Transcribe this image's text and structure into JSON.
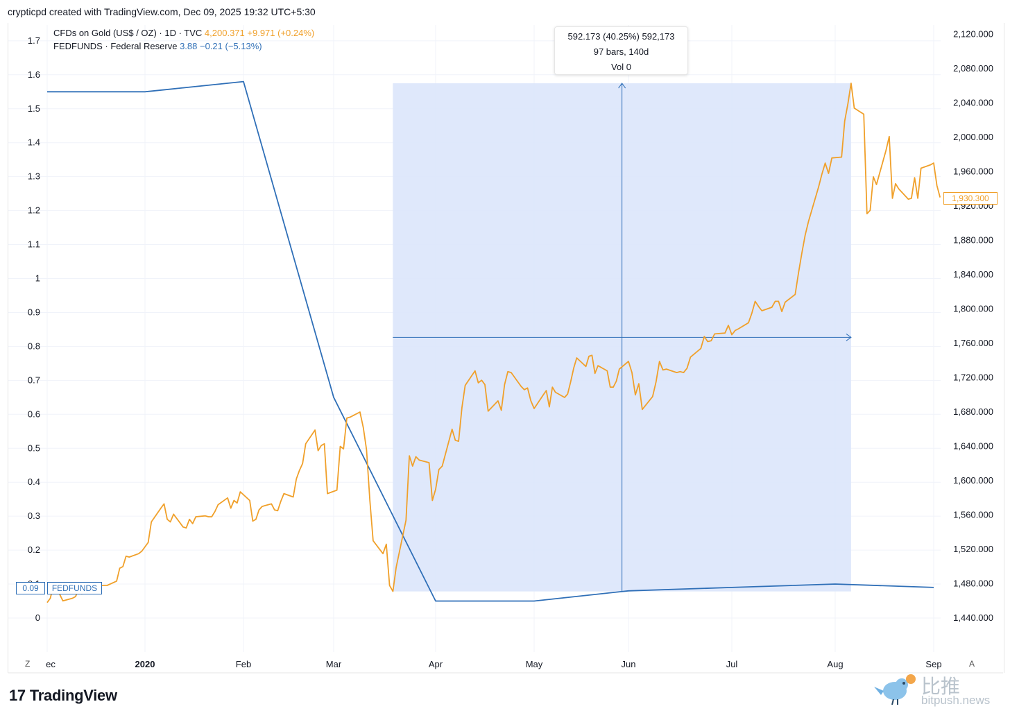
{
  "header": {
    "text": "crypticpd created with TradingView.com, Dec 09, 2025 19:32 UTC+5:30"
  },
  "legend": {
    "gold_name": "CFDs on Gold (US$ / OZ) · 1D · TVC",
    "gold_price": "4,200.371",
    "gold_change": "+9.971 (+0.24%)",
    "ff_name": "FEDFUNDS · Federal Reserve",
    "ff_value": "3.88",
    "ff_change": "−0.21 (−5.13%)"
  },
  "tooltip": {
    "line1": "592.173 (40.25%) 592,173",
    "line2": "97 bars, 140d",
    "line3": "Vol 0"
  },
  "badges": {
    "gold_last": "1,930.300",
    "ff_value": "0.09",
    "ff_name": "FEDFUNDS"
  },
  "controls": {
    "left": "Z",
    "right": "A"
  },
  "footer": {
    "logo_mark": "17",
    "logo_text": "TradingView"
  },
  "watermark": {
    "cn": "比推",
    "en": "bitpush.news"
  },
  "colors": {
    "gold": "#f0a02a",
    "fedfunds": "#2f6fb7",
    "range_fill": "#dce5fb",
    "grid": "#f0f3fa"
  },
  "chart_data": {
    "type": "line",
    "x_tick_labels": [
      "ec",
      "2020",
      "Feb",
      "Mar",
      "Apr",
      "May",
      "Jun",
      "Jul",
      "Aug",
      "Sep"
    ],
    "left_axis": {
      "ticks": [
        "0",
        "0.1",
        "0.2",
        "0.3",
        "0.4",
        "0.5",
        "0.6",
        "0.7",
        "0.8",
        "0.9",
        "1",
        "1.1",
        "1.2",
        "1.3",
        "1.4",
        "1.5",
        "1.6",
        "1.7"
      ],
      "ylim": [
        0,
        1.7
      ]
    },
    "right_axis": {
      "ticks": [
        "1,440.000",
        "1,480.000",
        "1,520.000",
        "1,560.000",
        "1,600.000",
        "1,640.000",
        "1,680.000",
        "1,720.000",
        "1,760.000",
        "1,800.000",
        "1,840.000",
        "1,880.000",
        "1,920.000",
        "1,960.000",
        "2,000.000",
        "2,040.000",
        "2,080.000",
        "2,120.000"
      ],
      "ylim": [
        1440,
        2120
      ]
    },
    "range_measure": {
      "x_start": "2020-03-19",
      "x_end": "2020-08-06",
      "y_low": 1471,
      "y_high": 2063
    },
    "series": [
      {
        "name": "FEDFUNDS",
        "axis": "left",
        "points": [
          [
            "2019-12-01",
            1.55
          ],
          [
            "2020-01-01",
            1.55
          ],
          [
            "2020-02-01",
            1.58
          ],
          [
            "2020-03-01",
            0.65
          ],
          [
            "2020-04-01",
            0.05
          ],
          [
            "2020-05-01",
            0.05
          ],
          [
            "2020-06-01",
            0.08
          ],
          [
            "2020-07-01",
            0.09
          ],
          [
            "2020-08-01",
            0.1
          ],
          [
            "2020-09-01",
            0.09
          ]
        ]
      },
      {
        "name": "CFDs on Gold (US$ / OZ)",
        "axis": "right",
        "points": [
          [
            "2019-12-01",
            1458
          ],
          [
            "2019-12-02",
            1463
          ],
          [
            "2019-12-03",
            1478
          ],
          [
            "2019-12-04",
            1475
          ],
          [
            "2019-12-06",
            1460
          ],
          [
            "2019-12-09",
            1463
          ],
          [
            "2019-12-10",
            1465
          ],
          [
            "2019-12-11",
            1474
          ],
          [
            "2019-12-12",
            1468
          ],
          [
            "2019-12-13",
            1476
          ],
          [
            "2019-12-16",
            1476
          ],
          [
            "2019-12-17",
            1476
          ],
          [
            "2019-12-18",
            1478
          ],
          [
            "2019-12-19",
            1478
          ],
          [
            "2019-12-20",
            1478
          ],
          [
            "2019-12-23",
            1483
          ],
          [
            "2019-12-24",
            1498
          ],
          [
            "2019-12-25",
            1500
          ],
          [
            "2019-12-26",
            1512
          ],
          [
            "2019-12-27",
            1511
          ],
          [
            "2019-12-30",
            1515
          ],
          [
            "2019-12-31",
            1518
          ],
          [
            "2020-01-02",
            1528
          ],
          [
            "2020-01-03",
            1552
          ],
          [
            "2020-01-06",
            1568
          ],
          [
            "2020-01-07",
            1573
          ],
          [
            "2020-01-08",
            1555
          ],
          [
            "2020-01-09",
            1552
          ],
          [
            "2020-01-10",
            1561
          ],
          [
            "2020-01-13",
            1546
          ],
          [
            "2020-01-14",
            1545
          ],
          [
            "2020-01-15",
            1555
          ],
          [
            "2020-01-16",
            1550
          ],
          [
            "2020-01-17",
            1558
          ],
          [
            "2020-01-20",
            1559
          ],
          [
            "2020-01-21",
            1558
          ],
          [
            "2020-01-22",
            1558
          ],
          [
            "2020-01-23",
            1564
          ],
          [
            "2020-01-24",
            1572
          ],
          [
            "2020-01-27",
            1580
          ],
          [
            "2020-01-28",
            1568
          ],
          [
            "2020-01-29",
            1577
          ],
          [
            "2020-01-30",
            1574
          ],
          [
            "2020-01-31",
            1587
          ],
          [
            "2020-02-03",
            1577
          ],
          [
            "2020-02-04",
            1553
          ],
          [
            "2020-02-05",
            1555
          ],
          [
            "2020-02-06",
            1566
          ],
          [
            "2020-02-07",
            1570
          ],
          [
            "2020-02-10",
            1573
          ],
          [
            "2020-02-11",
            1566
          ],
          [
            "2020-02-12",
            1565
          ],
          [
            "2020-02-13",
            1576
          ],
          [
            "2020-02-14",
            1585
          ],
          [
            "2020-02-17",
            1581
          ],
          [
            "2020-02-18",
            1602
          ],
          [
            "2020-02-19",
            1612
          ],
          [
            "2020-02-20",
            1620
          ],
          [
            "2020-02-21",
            1643
          ],
          [
            "2020-02-24",
            1659
          ],
          [
            "2020-02-25",
            1635
          ],
          [
            "2020-02-26",
            1641
          ],
          [
            "2020-02-27",
            1643
          ],
          [
            "2020-02-28",
            1585
          ],
          [
            "2020-03-02",
            1589
          ],
          [
            "2020-03-03",
            1640
          ],
          [
            "2020-03-04",
            1637
          ],
          [
            "2020-03-05",
            1673
          ],
          [
            "2020-03-06",
            1674
          ],
          [
            "2020-03-09",
            1680
          ],
          [
            "2020-03-10",
            1662
          ],
          [
            "2020-03-11",
            1636
          ],
          [
            "2020-03-12",
            1577
          ],
          [
            "2020-03-13",
            1530
          ],
          [
            "2020-03-16",
            1515
          ],
          [
            "2020-03-17",
            1526
          ],
          [
            "2020-03-18",
            1478
          ],
          [
            "2020-03-19",
            1471
          ],
          [
            "2020-03-20",
            1499
          ],
          [
            "2020-03-23",
            1554
          ],
          [
            "2020-03-24",
            1629
          ],
          [
            "2020-03-25",
            1617
          ],
          [
            "2020-03-26",
            1628
          ],
          [
            "2020-03-27",
            1624
          ],
          [
            "2020-03-30",
            1621
          ],
          [
            "2020-03-31",
            1577
          ],
          [
            "2020-04-01",
            1590
          ],
          [
            "2020-04-02",
            1613
          ],
          [
            "2020-04-03",
            1617
          ],
          [
            "2020-04-06",
            1660
          ],
          [
            "2020-04-07",
            1647
          ],
          [
            "2020-04-08",
            1646
          ],
          [
            "2020-04-09",
            1685
          ],
          [
            "2020-04-10",
            1711
          ],
          [
            "2020-04-13",
            1728
          ],
          [
            "2020-04-14",
            1714
          ],
          [
            "2020-04-15",
            1717
          ],
          [
            "2020-04-16",
            1712
          ],
          [
            "2020-04-17",
            1681
          ],
          [
            "2020-04-20",
            1693
          ],
          [
            "2020-04-21",
            1682
          ],
          [
            "2020-04-22",
            1712
          ],
          [
            "2020-04-23",
            1727
          ],
          [
            "2020-04-24",
            1726
          ],
          [
            "2020-04-27",
            1710
          ],
          [
            "2020-04-28",
            1706
          ],
          [
            "2020-04-29",
            1708
          ],
          [
            "2020-04-30",
            1693
          ],
          [
            "2020-05-01",
            1684
          ],
          [
            "2020-05-04",
            1700
          ],
          [
            "2020-05-05",
            1705
          ],
          [
            "2020-05-06",
            1686
          ],
          [
            "2020-05-07",
            1709
          ],
          [
            "2020-05-08",
            1703
          ],
          [
            "2020-05-11",
            1697
          ],
          [
            "2020-05-12",
            1701
          ],
          [
            "2020-05-13",
            1715
          ],
          [
            "2020-05-14",
            1731
          ],
          [
            "2020-05-15",
            1743
          ],
          [
            "2020-05-18",
            1733
          ],
          [
            "2020-05-19",
            1745
          ],
          [
            "2020-05-20",
            1746
          ],
          [
            "2020-05-21",
            1725
          ],
          [
            "2020-05-22",
            1734
          ],
          [
            "2020-05-25",
            1728
          ],
          [
            "2020-05-26",
            1709
          ],
          [
            "2020-05-27",
            1709
          ],
          [
            "2020-05-28",
            1716
          ],
          [
            "2020-05-29",
            1730
          ],
          [
            "2020-06-01",
            1739
          ],
          [
            "2020-06-02",
            1726
          ],
          [
            "2020-06-03",
            1700
          ],
          [
            "2020-06-04",
            1713
          ],
          [
            "2020-06-05",
            1683
          ],
          [
            "2020-06-08",
            1698
          ],
          [
            "2020-06-09",
            1715
          ],
          [
            "2020-06-10",
            1739
          ],
          [
            "2020-06-11",
            1729
          ],
          [
            "2020-06-12",
            1730
          ],
          [
            "2020-06-15",
            1726
          ],
          [
            "2020-06-16",
            1727
          ],
          [
            "2020-06-17",
            1726
          ],
          [
            "2020-06-18",
            1731
          ],
          [
            "2020-06-19",
            1744
          ],
          [
            "2020-06-22",
            1754
          ],
          [
            "2020-06-23",
            1768
          ],
          [
            "2020-06-24",
            1762
          ],
          [
            "2020-06-25",
            1763
          ],
          [
            "2020-06-26",
            1771
          ],
          [
            "2020-06-29",
            1772
          ],
          [
            "2020-06-30",
            1781
          ],
          [
            "2020-07-01",
            1770
          ],
          [
            "2020-07-02",
            1775
          ],
          [
            "2020-07-03",
            1777
          ],
          [
            "2020-07-06",
            1784
          ],
          [
            "2020-07-07",
            1795
          ],
          [
            "2020-07-08",
            1809
          ],
          [
            "2020-07-09",
            1803
          ],
          [
            "2020-07-10",
            1798
          ],
          [
            "2020-07-13",
            1802
          ],
          [
            "2020-07-14",
            1809
          ],
          [
            "2020-07-15",
            1809
          ],
          [
            "2020-07-16",
            1797
          ],
          [
            "2020-07-17",
            1808
          ],
          [
            "2020-07-20",
            1817
          ],
          [
            "2020-07-21",
            1842
          ],
          [
            "2020-07-22",
            1865
          ],
          [
            "2020-07-23",
            1886
          ],
          [
            "2020-07-24",
            1902
          ],
          [
            "2020-07-27",
            1942
          ],
          [
            "2020-07-28",
            1957
          ],
          [
            "2020-07-29",
            1970
          ],
          [
            "2020-07-30",
            1958
          ],
          [
            "2020-07-31",
            1976
          ],
          [
            "2020-08-03",
            1977
          ],
          [
            "2020-08-04",
            2019
          ],
          [
            "2020-08-05",
            2039
          ],
          [
            "2020-08-06",
            2063
          ],
          [
            "2020-08-07",
            2034
          ],
          [
            "2020-08-10",
            2027
          ],
          [
            "2020-08-11",
            1911
          ],
          [
            "2020-08-12",
            1915
          ],
          [
            "2020-08-13",
            1954
          ],
          [
            "2020-08-14",
            1945
          ],
          [
            "2020-08-17",
            1985
          ],
          [
            "2020-08-18",
            2001
          ],
          [
            "2020-08-19",
            1929
          ],
          [
            "2020-08-20",
            1946
          ],
          [
            "2020-08-21",
            1940
          ],
          [
            "2020-08-24",
            1928
          ],
          [
            "2020-08-25",
            1929
          ],
          [
            "2020-08-26",
            1953
          ],
          [
            "2020-08-27",
            1929
          ],
          [
            "2020-08-28",
            1964
          ],
          [
            "2020-08-31",
            1968
          ],
          [
            "2020-09-01",
            1970
          ],
          [
            "2020-09-02",
            1944
          ],
          [
            "2020-09-03",
            1930
          ]
        ]
      }
    ]
  }
}
